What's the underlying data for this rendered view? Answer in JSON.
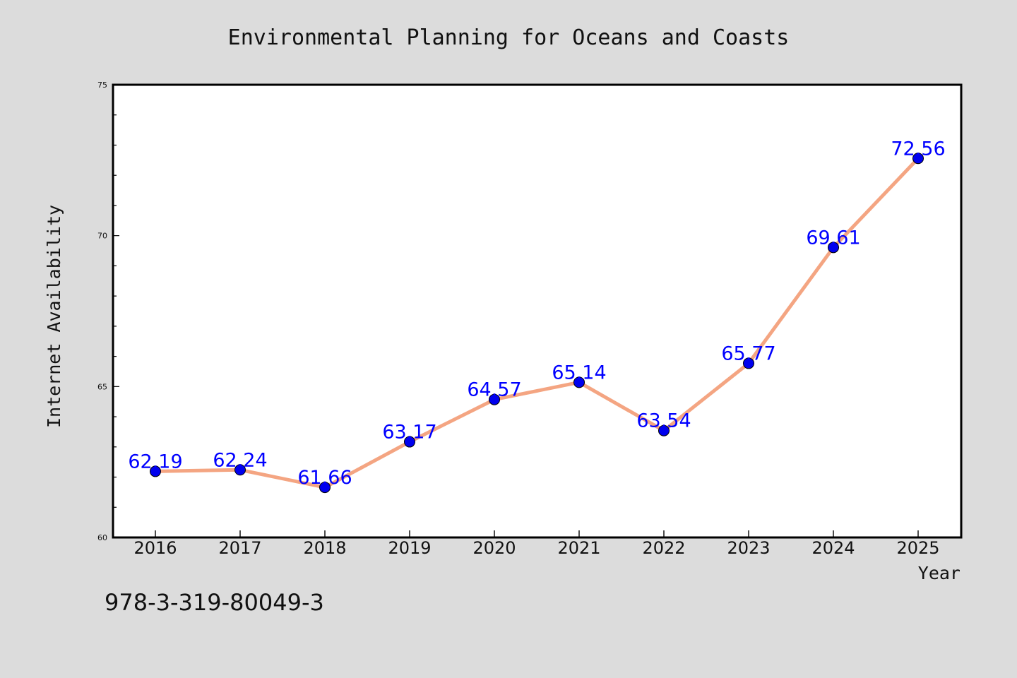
{
  "chart_data": {
    "type": "line",
    "title": "Environmental Planning for Oceans and Coasts",
    "xlabel": "Year",
    "ylabel": "Internet Availability",
    "categories": [
      "2016",
      "2017",
      "2018",
      "2019",
      "2020",
      "2021",
      "2022",
      "2023",
      "2024",
      "2025"
    ],
    "series": [
      {
        "values": [
          62.19,
          62.24,
          61.66,
          63.17,
          64.57,
          65.14,
          63.54,
          65.77,
          69.61,
          72.56
        ],
        "labels": [
          "62.19",
          "62.24",
          "61.66",
          "63.17",
          "64.57",
          "65.14",
          "63.54",
          "65.77",
          "69.61",
          "72.56"
        ]
      }
    ],
    "ylim": [
      60,
      75
    ],
    "y_major_ticks": [
      60,
      65,
      70,
      75
    ],
    "y_minor_step": 1,
    "grid": false,
    "legend": "none",
    "colors": {
      "line": "#f4a582",
      "marker": "#0000ee",
      "label": "#0000ff",
      "background": "#dcdcdc",
      "plot_background": "#ffffff"
    }
  },
  "footer": {
    "isbn": "978-3-319-80049-3"
  }
}
